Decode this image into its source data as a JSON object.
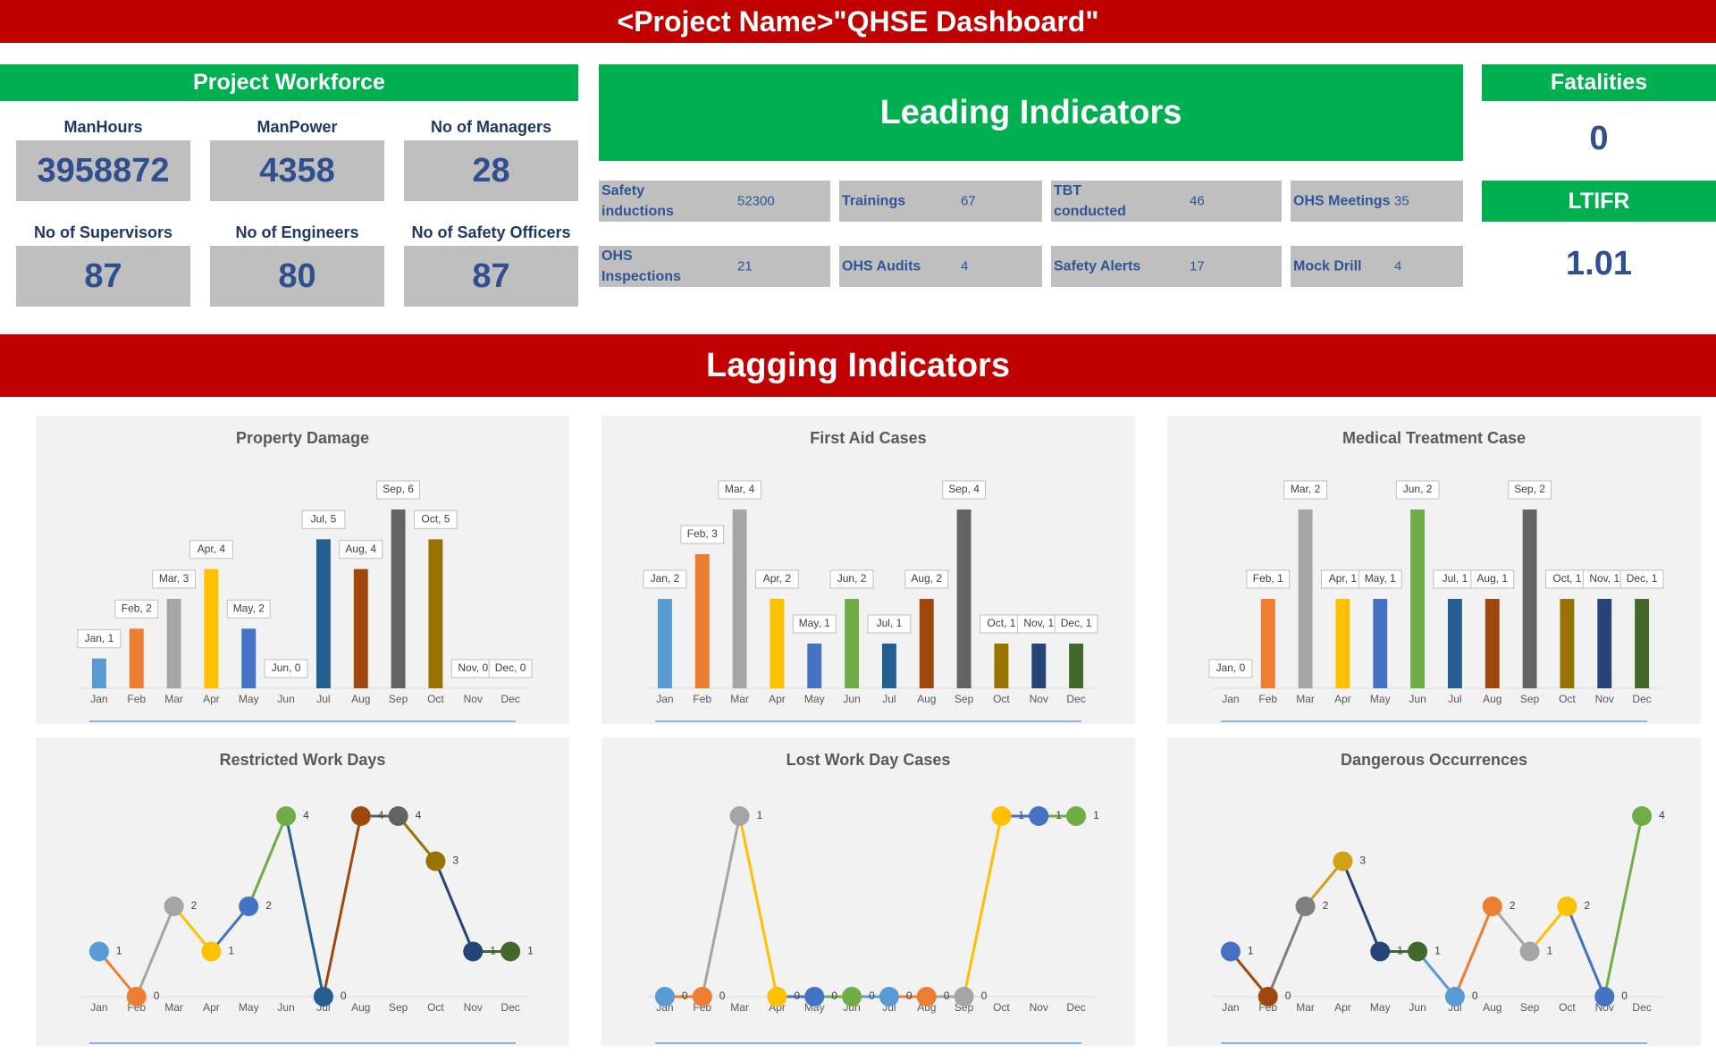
{
  "header": {
    "title": "<Project Name>\"QHSE Dashboard\""
  },
  "workforce": {
    "title": "Project Workforce",
    "items": [
      {
        "label": "ManHours",
        "value": 3958872
      },
      {
        "label": "ManPower",
        "value": 4358
      },
      {
        "label": "No of Managers",
        "value": 28
      },
      {
        "label": "No of Supervisors",
        "value": 87
      },
      {
        "label": "No of Engineers",
        "value": 80
      },
      {
        "label": "No of Safety Officers",
        "value": 87
      }
    ]
  },
  "leading": {
    "title": "Leading Indicators",
    "items": [
      {
        "label": "Safety inductions",
        "value": 52300
      },
      {
        "label": "Trainings",
        "value": 67
      },
      {
        "label": "TBT conducted",
        "value": 46
      },
      {
        "label": "OHS Meetings",
        "value": 35
      },
      {
        "label": "OHS Inspections",
        "value": 21
      },
      {
        "label": "OHS Audits",
        "value": 4
      },
      {
        "label": "Safety Alerts",
        "value": 17
      },
      {
        "label": "Mock Drill",
        "value": 4
      }
    ]
  },
  "fatalities": {
    "title": "Fatalities",
    "value": 0
  },
  "ltifr": {
    "title": "LTIFR",
    "value": 1.01
  },
  "lagging": {
    "title": "Lagging Indicators"
  },
  "chart_data": [
    {
      "type": "bar",
      "title": "Property Damage",
      "categories": [
        "Jan",
        "Feb",
        "Mar",
        "Apr",
        "May",
        "Jun",
        "Jul",
        "Aug",
        "Sep",
        "Oct",
        "Nov",
        "Dec"
      ],
      "values": [
        1,
        2,
        3,
        4,
        2,
        0,
        5,
        4,
        6,
        5,
        0,
        0
      ],
      "value_labels": [
        "Jan, 1",
        "Feb, 2",
        "Mar, 3",
        "Apr, 4",
        "May, 2",
        "Jun, 0",
        "Jul, 5",
        "Aug, 4",
        "Sep, 6",
        "Oct, 5",
        "Nov, 0",
        "Dec, 0"
      ],
      "colors": [
        "#5b9bd5",
        "#ed7d31",
        "#a5a5a5",
        "#ffc000",
        "#4472c4",
        "#70ad47",
        "#255e91",
        "#9e480e",
        "#636363",
        "#997300",
        "#264478",
        "#43682b"
      ]
    },
    {
      "type": "bar",
      "title": "First Aid Cases",
      "categories": [
        "Jan",
        "Feb",
        "Mar",
        "Apr",
        "May",
        "Jun",
        "Jul",
        "Aug",
        "Sep",
        "Oct",
        "Nov",
        "Dec"
      ],
      "values": [
        2,
        3,
        4,
        2,
        1,
        2,
        1,
        2,
        4,
        1,
        1,
        1
      ],
      "value_labels": [
        "Jan, 2",
        "Feb, 3",
        "Mar, 4",
        "Apr, 2",
        "May, 1",
        "Jun, 2",
        "Jul, 1",
        "Aug, 2",
        "Sep, 4",
        "Oct, 1",
        "Nov, 1",
        "Dec, 1"
      ],
      "colors": [
        "#5b9bd5",
        "#ed7d31",
        "#a5a5a5",
        "#ffc000",
        "#4472c4",
        "#70ad47",
        "#255e91",
        "#9e480e",
        "#636363",
        "#997300",
        "#264478",
        "#43682b"
      ]
    },
    {
      "type": "bar",
      "title": "Medical Treatment Case",
      "categories": [
        "Jan",
        "Feb",
        "Mar",
        "Apr",
        "May",
        "Jun",
        "Jul",
        "Aug",
        "Sep",
        "Oct",
        "Nov",
        "Dec"
      ],
      "values": [
        0,
        1,
        2,
        1,
        1,
        2,
        1,
        1,
        2,
        1,
        1,
        1
      ],
      "value_labels": [
        "Jan, 0",
        "Feb, 1",
        "Mar, 2",
        "Apr, 1",
        "May, 1",
        "Jun, 2",
        "Jul, 1",
        "Aug, 1",
        "Sep, 2",
        "Oct, 1",
        "Nov, 1",
        "Dec, 1"
      ],
      "colors": [
        "#5b9bd5",
        "#ed7d31",
        "#a5a5a5",
        "#ffc000",
        "#4472c4",
        "#70ad47",
        "#255e91",
        "#9e480e",
        "#636363",
        "#997300",
        "#264478",
        "#43682b"
      ]
    },
    {
      "type": "line",
      "title": "Restricted Work Days",
      "categories": [
        "Jan",
        "Feb",
        "Mar",
        "Apr",
        "May",
        "Jun",
        "Jul",
        "Aug",
        "Sep",
        "Oct",
        "Nov",
        "Dec"
      ],
      "values": [
        1,
        0,
        2,
        1,
        2,
        4,
        0,
        4,
        4,
        3,
        1,
        1
      ],
      "colors": [
        "#5b9bd5",
        "#ed7d31",
        "#a5a5a5",
        "#ffc000",
        "#4472c4",
        "#70ad47",
        "#255e91",
        "#9e480e",
        "#636363",
        "#997300",
        "#264478",
        "#43682b"
      ]
    },
    {
      "type": "line",
      "title": "Lost Work Day Cases",
      "categories": [
        "Jan",
        "Feb",
        "Mar",
        "Apr",
        "May",
        "Jun",
        "Jul",
        "Aug",
        "Sep",
        "Oct",
        "Nov",
        "Dec"
      ],
      "values": [
        0,
        0,
        1,
        0,
        0,
        0,
        0,
        0,
        0,
        1,
        1,
        1
      ],
      "colors": [
        "#5b9bd5",
        "#ed7d31",
        "#a5a5a5",
        "#ffc000",
        "#4472c4",
        "#70ad47",
        "#5b9bd5",
        "#ed7d31",
        "#a5a5a5",
        "#ffc000",
        "#4472c4",
        "#70ad47"
      ]
    },
    {
      "type": "line",
      "title": "Dangerous Occurrences",
      "categories": [
        "Jan",
        "Feb",
        "Mar",
        "Apr",
        "May",
        "Jun",
        "Jul",
        "Aug",
        "Sep",
        "Oct",
        "Nov",
        "Dec"
      ],
      "values": [
        1,
        0,
        2,
        3,
        1,
        1,
        0,
        2,
        1,
        2,
        0,
        4
      ],
      "colors": [
        "#4472c4",
        "#9e480e",
        "#7f7f7f",
        "#d4a017",
        "#264478",
        "#43682b",
        "#5b9bd5",
        "#ed7d31",
        "#a5a5a5",
        "#ffc000",
        "#4472c4",
        "#70ad47"
      ]
    }
  ]
}
